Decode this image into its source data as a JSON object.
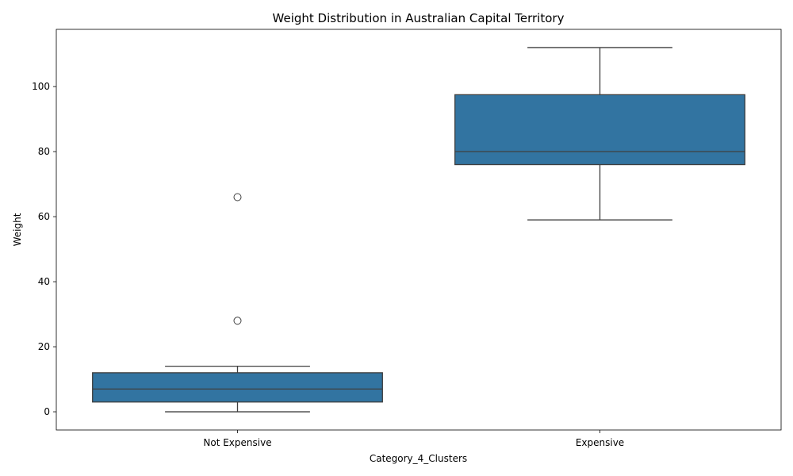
{
  "chart_data": {
    "type": "box",
    "title": "Weight Distribution in Australian Capital Territory",
    "xlabel": "Category_4_Clusters",
    "ylabel": "Weight",
    "ylim": [
      -5.6,
      117.6
    ],
    "yticks": [
      0,
      20,
      40,
      60,
      80,
      100
    ],
    "grid": false,
    "box_color": "#3274a1",
    "edge_color": "#3f3f3f",
    "categories": [
      "Not Expensive",
      "Expensive"
    ],
    "boxes": [
      {
        "category": "Not Expensive",
        "whisker_low": 0,
        "q1": 3,
        "median": 7,
        "q3": 12,
        "whisker_high": 14,
        "outliers": [
          28,
          66
        ]
      },
      {
        "category": "Expensive",
        "whisker_low": 59,
        "q1": 76,
        "median": 80,
        "q3": 97.5,
        "whisker_high": 112,
        "outliers": []
      }
    ]
  }
}
